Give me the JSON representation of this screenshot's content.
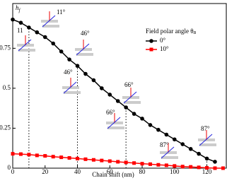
{
  "chart_data": {
    "type": "line",
    "y_label": "h",
    "y_label_sub": "f",
    "x_label": "Chain shift (nm)",
    "legend_title": "Field polar angle θ",
    "legend_title_sub": "B",
    "x": [
      0,
      5,
      10,
      15,
      20,
      25,
      30,
      35,
      40,
      45,
      50,
      55,
      60,
      65,
      70,
      75,
      80,
      85,
      90,
      95,
      100,
      105,
      110,
      115,
      120,
      125,
      130
    ],
    "series": [
      {
        "name": "0°",
        "color": "#000000",
        "marker": "circle",
        "values": [
          0.93,
          0.91,
          0.88,
          0.85,
          0.82,
          0.78,
          0.73,
          0.68,
          0.64,
          0.59,
          0.55,
          0.5,
          0.46,
          0.42,
          0.38,
          0.34,
          0.31,
          0.27,
          0.24,
          0.21,
          0.18,
          0.15,
          0.12,
          0.09,
          0.06,
          0.04,
          null
        ]
      },
      {
        "name": "10°",
        "color": "#ff0000",
        "marker": "square",
        "values": [
          0.09,
          0.088,
          0.085,
          0.08,
          0.077,
          0.072,
          0.068,
          0.064,
          0.06,
          0.056,
          0.052,
          0.048,
          0.044,
          0.04,
          0.036,
          0.032,
          0.028,
          0.025,
          0.021,
          0.018,
          0.014,
          0.01,
          0.008,
          0.005,
          0.002,
          0,
          0
        ]
      }
    ],
    "markers_x": [
      10,
      40,
      70,
      120
    ],
    "annotations": [
      "11°",
      "11",
      "46°",
      "46°",
      "66°",
      "66°",
      "87°",
      "87°"
    ],
    "xlim": [
      0,
      132
    ],
    "ylim": [
      0,
      1.03
    ],
    "xticks": [
      0,
      20,
      40,
      60,
      80,
      100,
      120
    ],
    "yticks": [
      0,
      0.25,
      0.5,
      0.75
    ]
  }
}
